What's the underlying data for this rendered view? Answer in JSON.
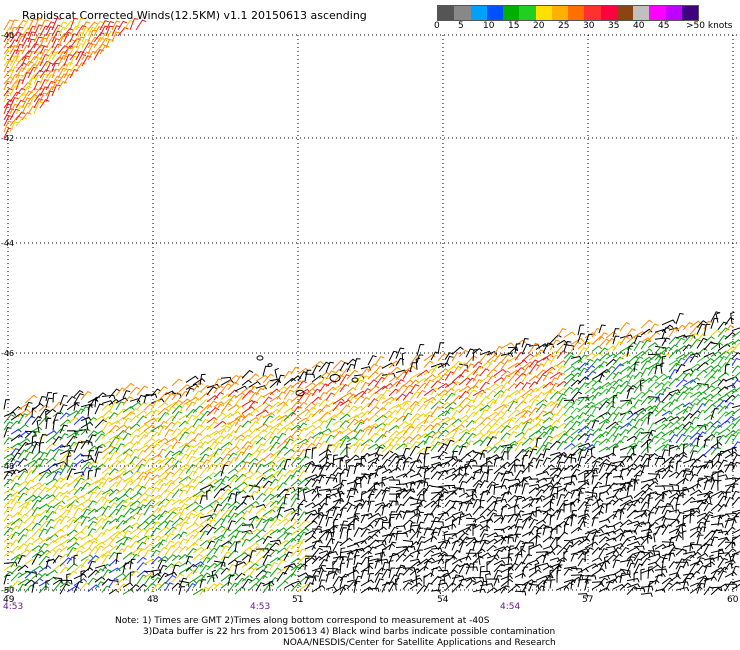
{
  "title": "Rapidscat Corrected Winds(12.5KM) v1.1 20150613 ascending",
  "legend": {
    "colors": [
      "#555555",
      "#888888",
      "#00a0ff",
      "#0050ff",
      "#00b000",
      "#20d020",
      "#ffe000",
      "#ffb000",
      "#ff7000",
      "#ff3030",
      "#ff0040",
      "#8b4513",
      "#c0c0c0",
      "#ff00ff",
      "#c000ff",
      "#400080"
    ],
    "ticks": [
      "0",
      "5",
      "10",
      "15",
      "20",
      "25",
      "30",
      "35",
      "40",
      "45",
      ">50 knots"
    ]
  },
  "axes": {
    "lat_labels": [
      "-40",
      "-42",
      "-44",
      "-46",
      "-48",
      "-50"
    ],
    "lon_labels": [
      "49",
      "48",
      "51",
      "54",
      "57",
      "60"
    ],
    "time_labels": [
      "4:53",
      "4:53",
      "4:54"
    ]
  },
  "wind_colors": {
    "black": "#000000",
    "blue": "#2030ff",
    "green": "#10a010",
    "light_green": "#30c030",
    "yellow": "#f0d000",
    "orange": "#ff8a00",
    "red": "#e02020"
  },
  "notes": {
    "line1": "Note: 1) Times are GMT 2)Times along bottom correspond to measurement at -40S",
    "line2": "3)Data buffer is 22 hrs from 20150613 4) Black wind barbs indicate possible contamination",
    "line3": "NOAA/NESDIS/Center for Satellite Applications and Research"
  }
}
